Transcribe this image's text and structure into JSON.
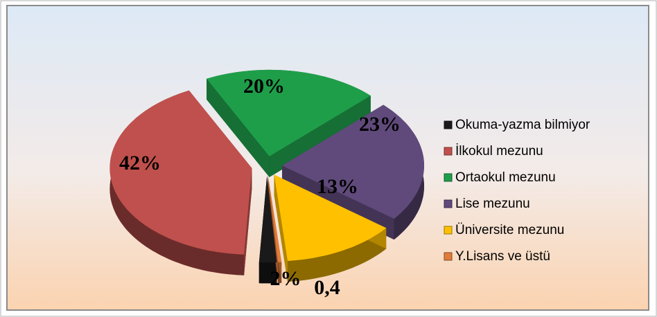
{
  "chart_data": {
    "type": "pie",
    "categories": [
      "Okuma-yazma bilmiyor",
      "İlkokul mezunu",
      "Ortaokul mezunu",
      "Lise mezunu",
      "Üniversite mezunu",
      "Y.Lisans ve üstü"
    ],
    "values": [
      2,
      42,
      20,
      23,
      13,
      0.4
    ],
    "value_labels": [
      "2%",
      "42%",
      "20%",
      "23%",
      "13%",
      "0,4"
    ],
    "colors": [
      "#1a1a1a",
      "#c0504d",
      "#1f9e4a",
      "#604a7b",
      "#ffc000",
      "#e07b39"
    ],
    "legend": "right"
  }
}
